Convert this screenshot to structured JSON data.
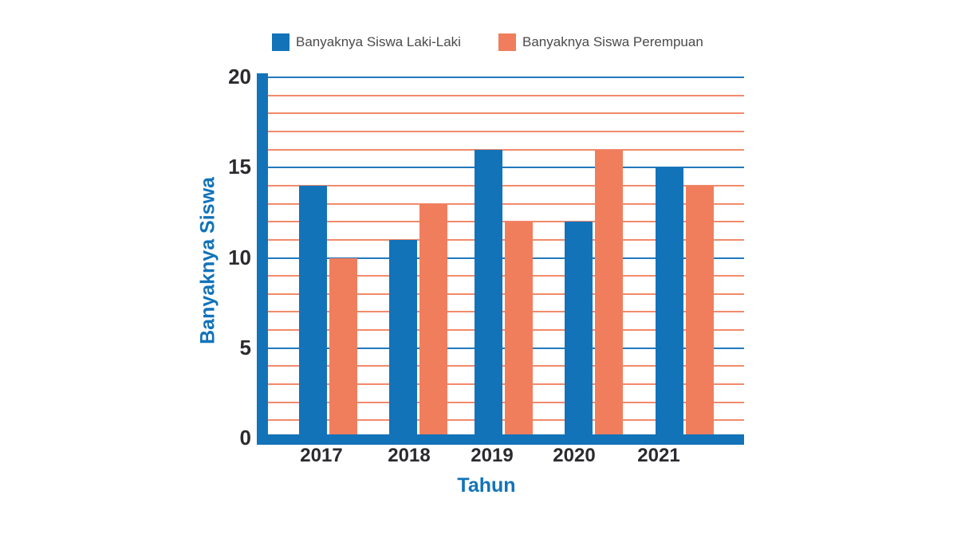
{
  "chart_data": {
    "type": "bar",
    "categories": [
      "2017",
      "2018",
      "2019",
      "2020",
      "2021"
    ],
    "series": [
      {
        "name": "Banyaknya Siswa Laki-Laki",
        "color": "#1273b9",
        "values": [
          14,
          11,
          16,
          12,
          15
        ]
      },
      {
        "name": "Banyaknya Siswa Perempuan",
        "color": "#f07e5d",
        "values": [
          10,
          13,
          12,
          16,
          14
        ]
      }
    ],
    "title": "",
    "xlabel": "Tahun",
    "ylabel": "Banyaknya Siswa",
    "ylim": [
      0,
      20
    ],
    "yticks_labeled": [
      0,
      5,
      10,
      15,
      20
    ],
    "minor_grid_step": 1,
    "major_grid_step": 5,
    "grid": "horizontal",
    "legend_position": "top",
    "colors": {
      "axis": "#1273b9",
      "major_gridline": "#2279bd",
      "minor_gridline": "#f28a6c",
      "tick_text": "#2b2a2e",
      "axis_title_text": "#1273b9",
      "legend_text": "#4a4a4c",
      "background": "#ffffff"
    }
  }
}
